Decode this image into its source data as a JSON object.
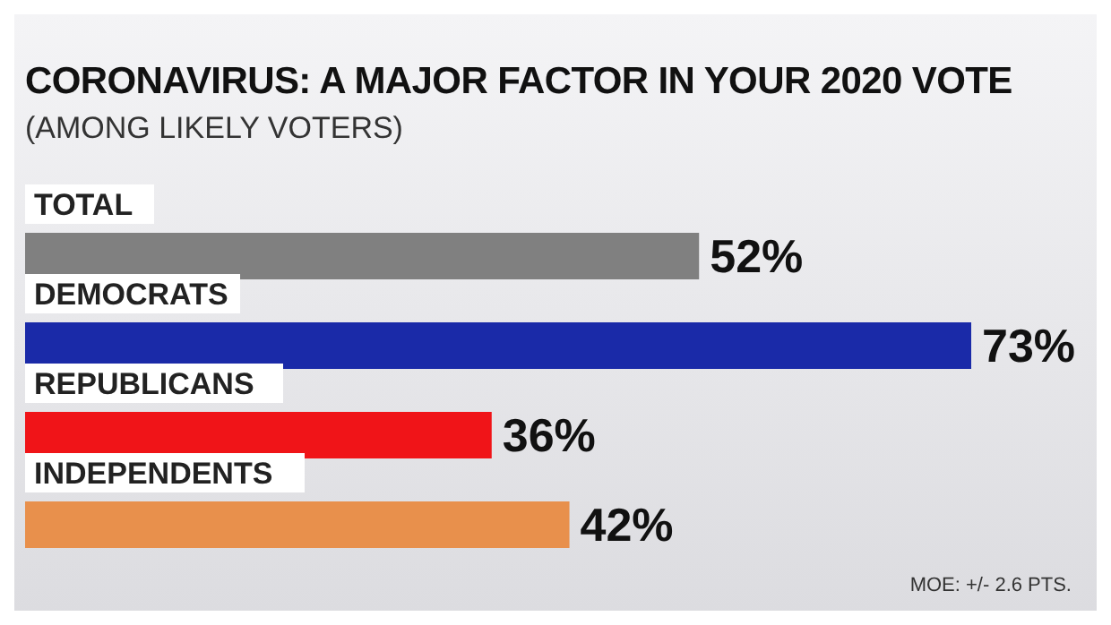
{
  "chart_data": {
    "type": "bar",
    "orientation": "horizontal",
    "title": "CORONAVIRUS: A MAJOR FACTOR IN YOUR 2020 VOTE",
    "subtitle": "(AMONG LIKELY VOTERS)",
    "categories": [
      "TOTAL",
      "DEMOCRATS",
      "REPUBLICANS",
      "INDEPENDENTS"
    ],
    "values": [
      52,
      73,
      36,
      42
    ],
    "colors": [
      "#808080",
      "#1a2aa8",
      "#f01418",
      "#e8904c"
    ],
    "value_labels": [
      "52%",
      "73%",
      "36%",
      "42%"
    ],
    "annotations": [
      "MOE: +/- 2.6 PTS."
    ]
  }
}
